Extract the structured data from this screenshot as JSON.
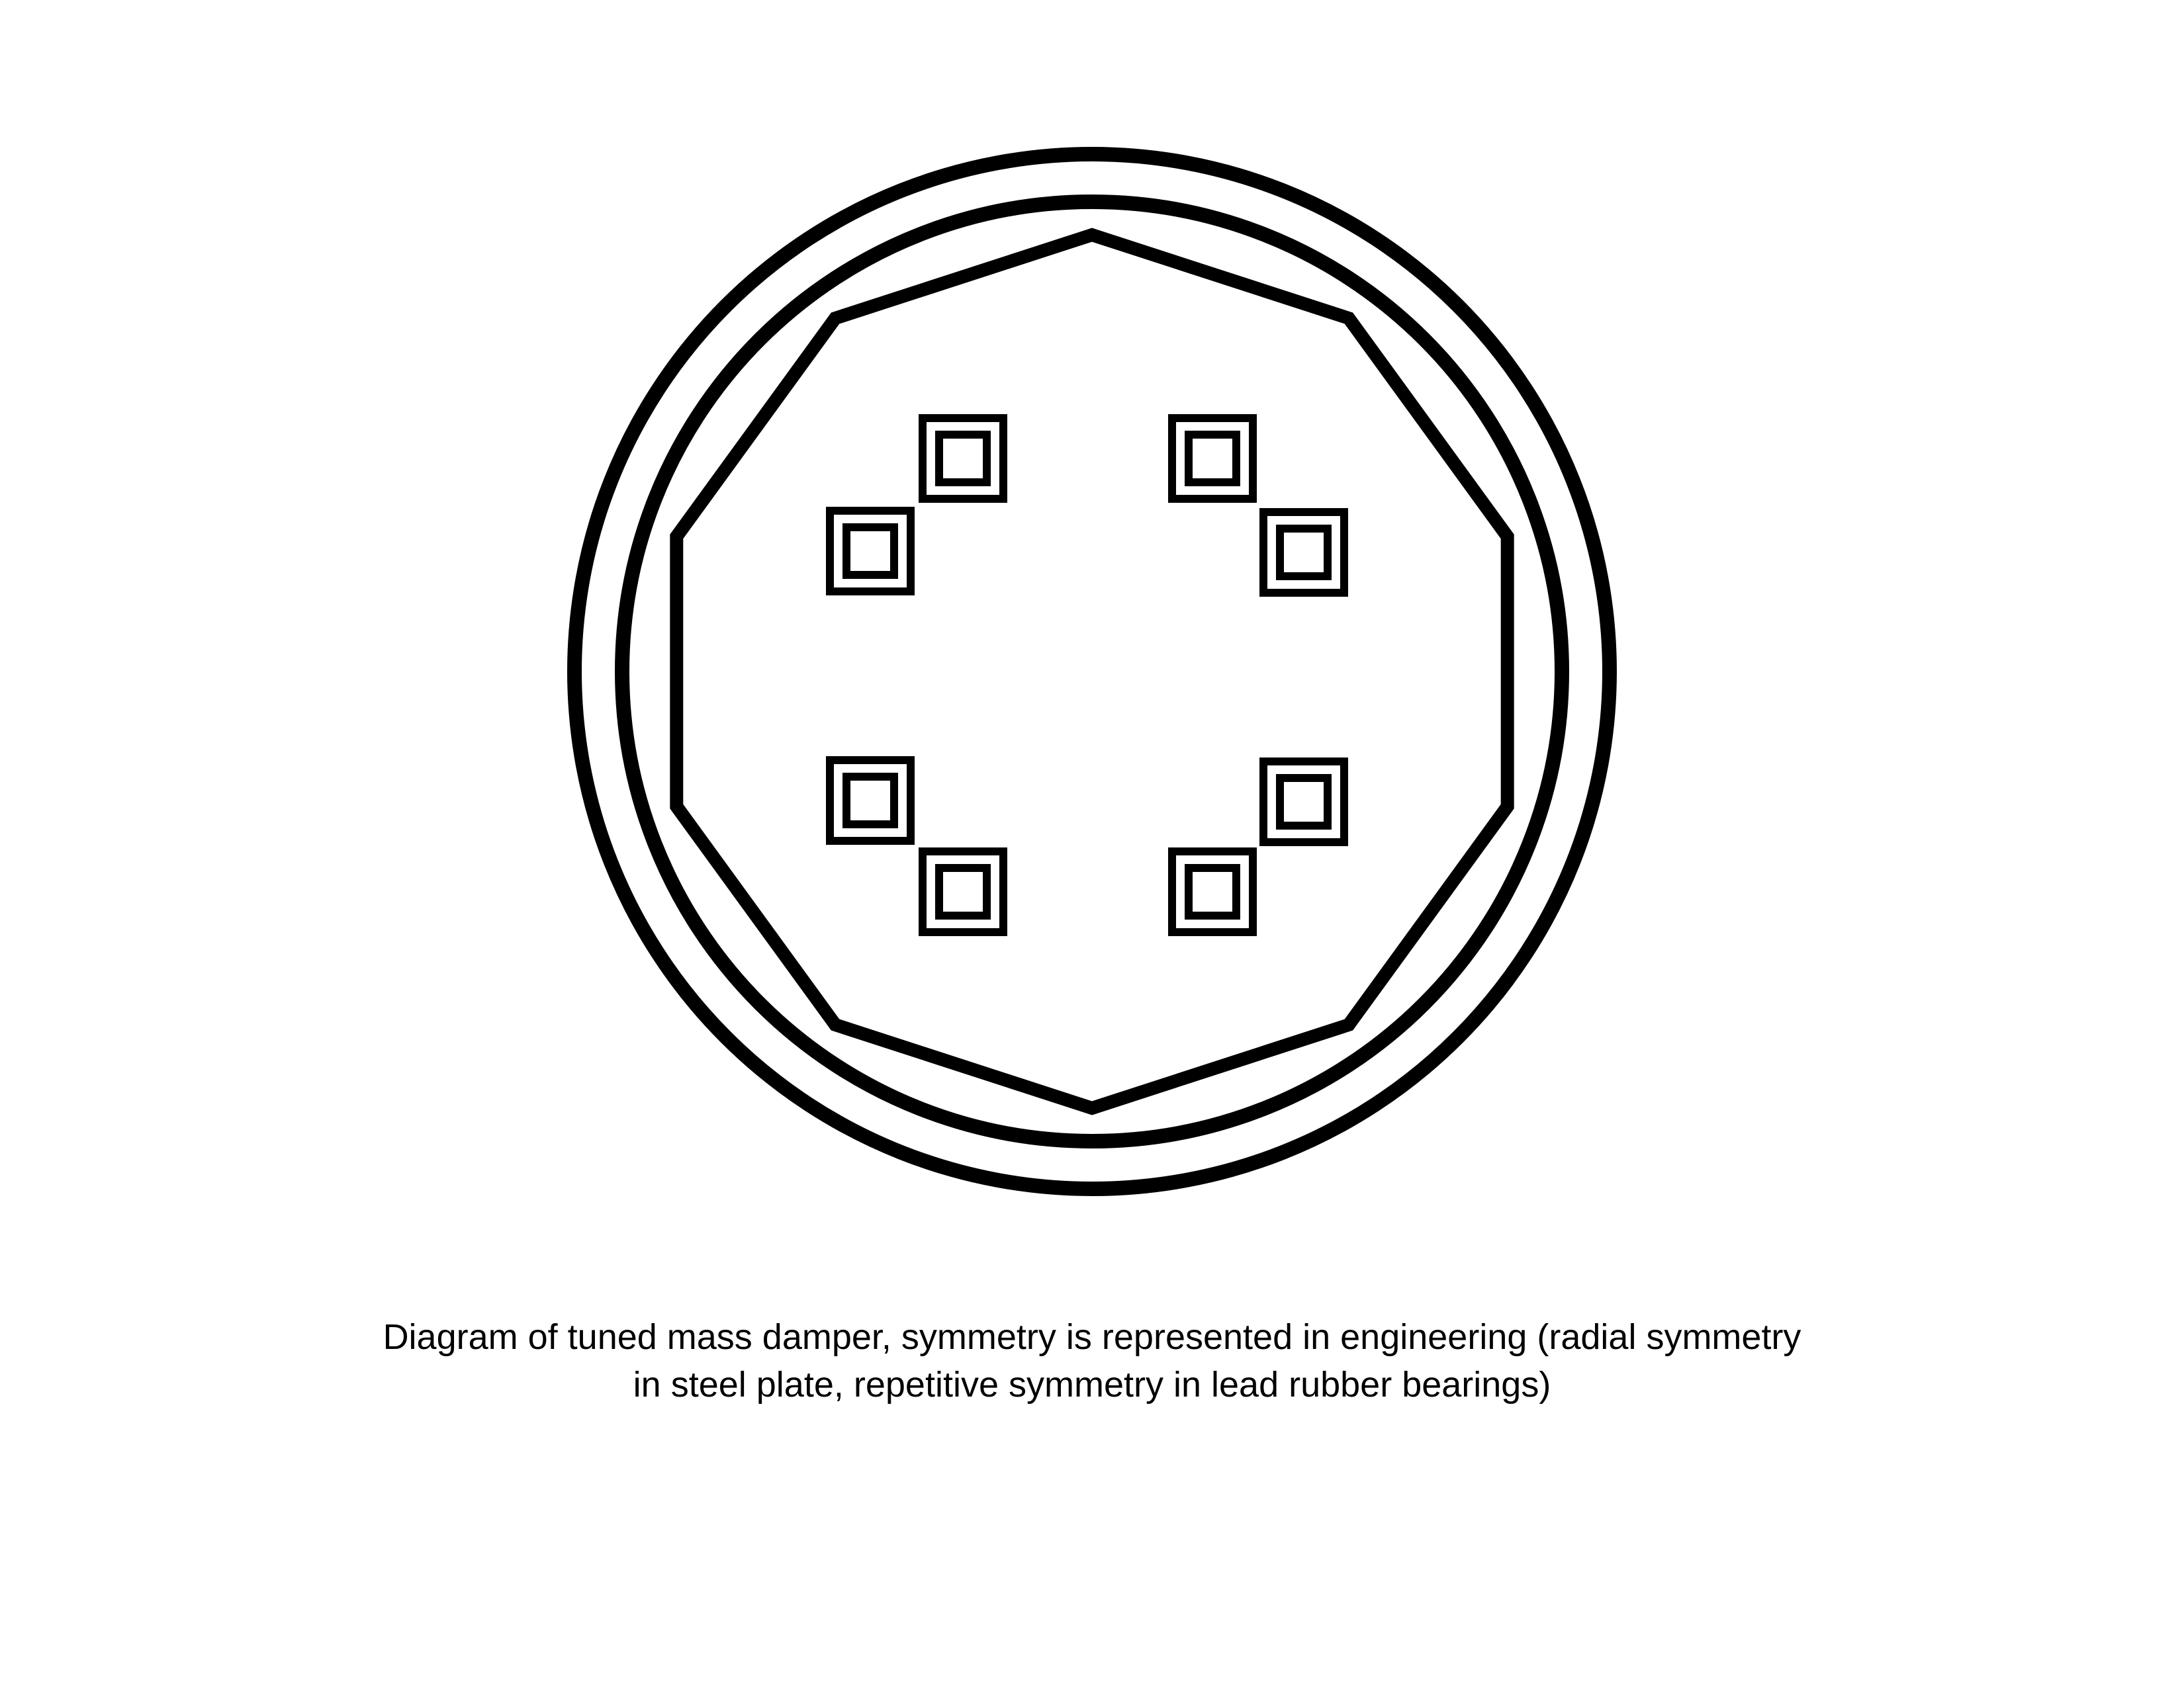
{
  "caption": {
    "line1": "Diagram of tuned mass damper, symmetry is represented in engineering (radial symmetry",
    "line2": "in steel plate, repetitive symmetry in lead rubber bearings)"
  },
  "colors": {
    "stroke": "#000000",
    "background": "#ffffff"
  },
  "structure": {
    "outer_rings": 2,
    "steel_plate_sides": 10,
    "bearing_groups": 4,
    "bearings_per_group": 2
  }
}
